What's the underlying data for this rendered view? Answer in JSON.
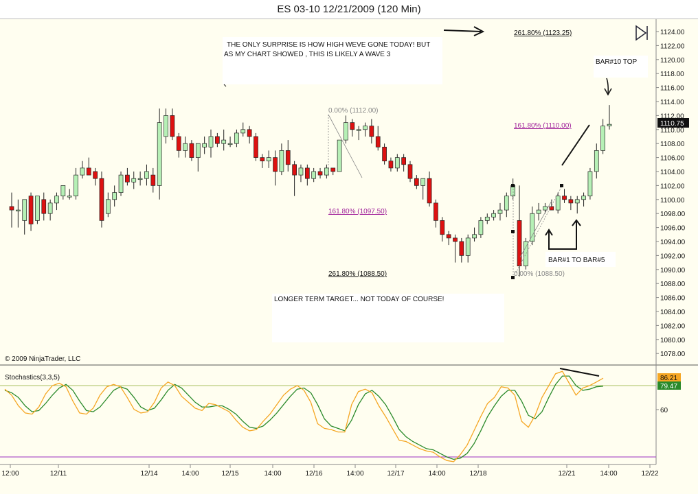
{
  "window": {
    "title": "ES 03-10  12/21/2009 (120 Min)"
  },
  "copyright": "© 2009 NinjaTrader, LLC",
  "price_panel": {
    "last_price": "1110.75",
    "y_ticks": [
      "1124.00",
      "1122.00",
      "1120.00",
      "1118.00",
      "1116.00",
      "1114.00",
      "1112.00",
      "1110.00",
      "1108.00",
      "1106.00",
      "1104.00",
      "1102.00",
      "1100.00",
      "1098.00",
      "1096.00",
      "1094.00",
      "1092.00",
      "1090.00",
      "1088.00",
      "1086.00",
      "1084.00",
      "1082.00",
      "1080.00",
      "1078.00"
    ]
  },
  "annotations": {
    "note1": [
      "THE ONLY SURPRISE IS HOW HIGH WEVE GONE TODAY!  BUT",
      "AS MY CHART SHOWED , THIS IS LIKELY A WAVE 3"
    ],
    "note2": "LONGER TERM TARGET... NOT TODAY OF COURSE!",
    "bar10": "BAR#10 TOP",
    "bar1to5": "BAR#1 TO BAR#5"
  },
  "fib_labels": {
    "f0_top": "0.00% (1112.00)",
    "f1618_left": "161.80% (1097.50)",
    "f2618_left": "261.80% (1088.50)",
    "f0_bottom": "0.00% (1088.50)",
    "f1618_right": "161.80% (1110.00)",
    "f2618_right": "261.80% (1123.25)"
  },
  "indicator": {
    "name": "Stochastics(3,3,5)",
    "k_value": "86.21",
    "d_value": "79.47",
    "y_tick": "60",
    "upper_line": 80,
    "lower_line": 20
  },
  "x_ticks": [
    "12:00",
    "12/11",
    "12/14",
    "14:00",
    "12/15",
    "14:00",
    "12/16",
    "14:00",
    "12/17",
    "14:00",
    "12/18",
    "12/21",
    "14:00",
    "12/22"
  ],
  "colors": {
    "up": "#b6f0b6",
    "down": "#dd1111",
    "k_line": "#f5a623",
    "d_line": "#2a8a2a",
    "upper_line": "#a8c060",
    "lower_line": "#9b30c0",
    "fib": "#a0209a"
  },
  "chart_data": {
    "type": "candlestick",
    "title": "ES 03-10  12/21/2009 (120 Min)",
    "ylim": [
      1077,
      1125
    ],
    "bars": [
      {
        "o": 1099,
        "h": 1101,
        "l": 1096,
        "c": 1098.5
      },
      {
        "o": 1098.5,
        "h": 1100,
        "l": 1096,
        "c": 1098.5
      },
      {
        "o": 1097,
        "h": 1100,
        "l": 1095,
        "c": 1100
      },
      {
        "o": 1100.5,
        "h": 1101,
        "l": 1095.5,
        "c": 1096.5
      },
      {
        "o": 1097,
        "h": 1100.5,
        "l": 1096.5,
        "c": 1100.5
      },
      {
        "o": 1100,
        "h": 1101,
        "l": 1097,
        "c": 1098
      },
      {
        "o": 1098,
        "h": 1100,
        "l": 1097,
        "c": 1099.5
      },
      {
        "o": 1099.5,
        "h": 1101,
        "l": 1098.5,
        "c": 1100.5
      },
      {
        "o": 1100.5,
        "h": 1102,
        "l": 1100,
        "c": 1102
      },
      {
        "o": 1100.5,
        "h": 1101.5,
        "l": 1100,
        "c": 1100.5
      },
      {
        "o": 1100.5,
        "h": 1104.5,
        "l": 1100,
        "c": 1103.5
      },
      {
        "o": 1103.5,
        "h": 1105.5,
        "l": 1103,
        "c": 1104.5
      },
      {
        "o": 1104.5,
        "h": 1106,
        "l": 1103.5,
        "c": 1103.5
      },
      {
        "o": 1104,
        "h": 1104.5,
        "l": 1102,
        "c": 1103
      },
      {
        "o": 1103,
        "h": 1104,
        "l": 1096,
        "c": 1097
      },
      {
        "o": 1098,
        "h": 1101,
        "l": 1097.5,
        "c": 1100
      },
      {
        "o": 1100,
        "h": 1102,
        "l": 1099,
        "c": 1101
      },
      {
        "o": 1101,
        "h": 1104,
        "l": 1100.5,
        "c": 1103.5
      },
      {
        "o": 1103.5,
        "h": 1104.5,
        "l": 1102,
        "c": 1102.5
      },
      {
        "o": 1102.5,
        "h": 1104,
        "l": 1101.5,
        "c": 1103
      },
      {
        "o": 1103,
        "h": 1104,
        "l": 1102,
        "c": 1103
      },
      {
        "o": 1103,
        "h": 1105,
        "l": 1102,
        "c": 1104
      },
      {
        "o": 1103.5,
        "h": 1104.5,
        "l": 1101,
        "c": 1102
      },
      {
        "o": 1102,
        "h": 1113,
        "l": 1100,
        "c": 1111
      },
      {
        "o": 1109,
        "h": 1113,
        "l": 1108,
        "c": 1112
      },
      {
        "o": 1112,
        "h": 1113,
        "l": 1108.5,
        "c": 1109
      },
      {
        "o": 1109,
        "h": 1109.5,
        "l": 1106,
        "c": 1107
      },
      {
        "o": 1107,
        "h": 1109,
        "l": 1106,
        "c": 1108
      },
      {
        "o": 1108,
        "h": 1108.5,
        "l": 1105.5,
        "c": 1106
      },
      {
        "o": 1106,
        "h": 1108,
        "l": 1104,
        "c": 1108
      },
      {
        "o": 1107.5,
        "h": 1109,
        "l": 1106.5,
        "c": 1108
      },
      {
        "o": 1107.5,
        "h": 1110,
        "l": 1106,
        "c": 1109
      },
      {
        "o": 1109,
        "h": 1109.5,
        "l": 1107.5,
        "c": 1108
      },
      {
        "o": 1108,
        "h": 1110,
        "l": 1107,
        "c": 1108.5
      },
      {
        "o": 1108,
        "h": 1109,
        "l": 1107.5,
        "c": 1108
      },
      {
        "o": 1108,
        "h": 1110,
        "l": 1107.5,
        "c": 1109.5
      },
      {
        "o": 1109.5,
        "h": 1111,
        "l": 1109,
        "c": 1110
      },
      {
        "o": 1110,
        "h": 1110.5,
        "l": 1108,
        "c": 1109
      },
      {
        "o": 1109,
        "h": 1109.5,
        "l": 1105.5,
        "c": 1106
      },
      {
        "o": 1106,
        "h": 1106.5,
        "l": 1104.5,
        "c": 1105.5
      },
      {
        "o": 1105.5,
        "h": 1107,
        "l": 1104.5,
        "c": 1106
      },
      {
        "o": 1106,
        "h": 1107,
        "l": 1102,
        "c": 1104
      },
      {
        "o": 1104,
        "h": 1108,
        "l": 1103.5,
        "c": 1107
      },
      {
        "o": 1107,
        "h": 1108.5,
        "l": 1104,
        "c": 1105
      },
      {
        "o": 1105,
        "h": 1105.5,
        "l": 1100.5,
        "c": 1103.5
      },
      {
        "o": 1103.5,
        "h": 1105,
        "l": 1102.5,
        "c": 1104.5
      },
      {
        "o": 1104.5,
        "h": 1105,
        "l": 1102,
        "c": 1103
      },
      {
        "o": 1103,
        "h": 1104.5,
        "l": 1102.5,
        "c": 1104
      },
      {
        "o": 1104,
        "h": 1104.5,
        "l": 1103,
        "c": 1103.5
      },
      {
        "o": 1103.5,
        "h": 1105,
        "l": 1103,
        "c": 1104.5
      },
      {
        "o": 1104.5,
        "h": 1104.5,
        "l": 1103.5,
        "c": 1104
      },
      {
        "o": 1104,
        "h": 1108.5,
        "l": 1104,
        "c": 1108.5
      },
      {
        "o": 1108.5,
        "h": 1112,
        "l": 1108,
        "c": 1111
      },
      {
        "o": 1111,
        "h": 1111.5,
        "l": 1109,
        "c": 1110
      },
      {
        "o": 1110,
        "h": 1110.5,
        "l": 1108.5,
        "c": 1110
      },
      {
        "o": 1110,
        "h": 1111,
        "l": 1109,
        "c": 1110.5
      },
      {
        "o": 1110.5,
        "h": 1111.5,
        "l": 1108,
        "c": 1109
      },
      {
        "o": 1109,
        "h": 1110.5,
        "l": 1107,
        "c": 1107.5
      },
      {
        "o": 1107.5,
        "h": 1108,
        "l": 1105,
        "c": 1105.5
      },
      {
        "o": 1105.5,
        "h": 1106,
        "l": 1104,
        "c": 1104.5
      },
      {
        "o": 1104.5,
        "h": 1106.5,
        "l": 1104,
        "c": 1106
      },
      {
        "o": 1106,
        "h": 1106.5,
        "l": 1104,
        "c": 1105
      },
      {
        "o": 1105,
        "h": 1105.5,
        "l": 1102.5,
        "c": 1103
      },
      {
        "o": 1103,
        "h": 1103.5,
        "l": 1101.5,
        "c": 1102
      },
      {
        "o": 1102,
        "h": 1103,
        "l": 1100,
        "c": 1103
      },
      {
        "o": 1103,
        "h": 1104,
        "l": 1099,
        "c": 1099.5
      },
      {
        "o": 1099.5,
        "h": 1100,
        "l": 1096,
        "c": 1097
      },
      {
        "o": 1097,
        "h": 1097.5,
        "l": 1094,
        "c": 1095
      },
      {
        "o": 1095,
        "h": 1095.5,
        "l": 1093.5,
        "c": 1094.5
      },
      {
        "o": 1094.5,
        "h": 1095,
        "l": 1091,
        "c": 1094
      },
      {
        "o": 1094,
        "h": 1094.5,
        "l": 1091,
        "c": 1092
      },
      {
        "o": 1092,
        "h": 1095,
        "l": 1091,
        "c": 1094.5
      },
      {
        "o": 1094.5,
        "h": 1096,
        "l": 1094,
        "c": 1095
      },
      {
        "o": 1095,
        "h": 1097.5,
        "l": 1094.5,
        "c": 1097
      },
      {
        "o": 1097,
        "h": 1098,
        "l": 1096.5,
        "c": 1097.5
      },
      {
        "o": 1097.5,
        "h": 1098.5,
        "l": 1097,
        "c": 1098
      },
      {
        "o": 1098,
        "h": 1099.5,
        "l": 1097,
        "c": 1098.5
      },
      {
        "o": 1098.5,
        "h": 1101,
        "l": 1097.5,
        "c": 1100.5
      },
      {
        "o": 1100.5,
        "h": 1103,
        "l": 1100,
        "c": 1102
      },
      {
        "o": 1097,
        "h": 1102,
        "l": 1089,
        "c": 1090.5
      },
      {
        "o": 1090.5,
        "h": 1094.5,
        "l": 1090,
        "c": 1094
      },
      {
        "o": 1094,
        "h": 1099,
        "l": 1093.5,
        "c": 1098
      },
      {
        "o": 1098,
        "h": 1099.5,
        "l": 1097,
        "c": 1098.5
      },
      {
        "o": 1098.5,
        "h": 1099.5,
        "l": 1098,
        "c": 1099
      },
      {
        "o": 1099,
        "h": 1100,
        "l": 1098.5,
        "c": 1098.5
      },
      {
        "o": 1098.5,
        "h": 1101,
        "l": 1098,
        "c": 1100.5
      },
      {
        "o": 1100.5,
        "h": 1101.5,
        "l": 1099.5,
        "c": 1100
      },
      {
        "o": 1100,
        "h": 1100.5,
        "l": 1098.5,
        "c": 1099.5
      },
      {
        "o": 1099.5,
        "h": 1100.5,
        "l": 1098,
        "c": 1100
      },
      {
        "o": 1100,
        "h": 1101,
        "l": 1099,
        "c": 1100.5
      },
      {
        "o": 1100.5,
        "h": 1104.5,
        "l": 1100,
        "c": 1104
      },
      {
        "o": 1104,
        "h": 1108,
        "l": 1103,
        "c": 1107
      },
      {
        "o": 1107,
        "h": 1111.5,
        "l": 1106.5,
        "c": 1110.5
      },
      {
        "o": 1110.5,
        "h": 1113.5,
        "l": 1110,
        "c": 1110.75
      }
    ],
    "stochastics": {
      "k": [
        77,
        72,
        63,
        57,
        56,
        62,
        73,
        80,
        82,
        79,
        67,
        57,
        56,
        61,
        72,
        79,
        81,
        79,
        70,
        60,
        57,
        58,
        66,
        78,
        83,
        80,
        71,
        66,
        61,
        59,
        65,
        64,
        61,
        58,
        51,
        45,
        42,
        43,
        50,
        56,
        64,
        72,
        77,
        80,
        76,
        66,
        48,
        44,
        43,
        41,
        41,
        64,
        75,
        77,
        74,
        63,
        54,
        44,
        34,
        33,
        30,
        27,
        25,
        24,
        20,
        17,
        16,
        22,
        30,
        42,
        54,
        65,
        70,
        79,
        78,
        72,
        50,
        45,
        55,
        70,
        80,
        90,
        92,
        82,
        72,
        78,
        80,
        83,
        86.21
      ],
      "d": [
        76,
        74,
        70,
        63,
        58,
        59,
        65,
        72,
        78,
        81,
        76,
        67,
        59,
        58,
        62,
        69,
        76,
        79,
        77,
        70,
        62,
        59,
        61,
        68,
        76,
        81,
        78,
        72,
        66,
        62,
        62,
        63,
        63,
        60,
        56,
        50,
        45,
        44,
        46,
        51,
        57,
        64,
        71,
        77,
        78,
        74,
        64,
        52,
        46,
        44,
        42,
        51,
        64,
        73,
        76,
        71,
        64,
        54,
        43,
        37,
        33,
        30,
        27,
        26,
        23,
        20,
        18,
        19,
        23,
        31,
        42,
        54,
        63,
        71,
        76,
        76,
        67,
        55,
        52,
        58,
        70,
        81,
        88,
        88,
        80,
        76,
        77,
        79,
        79.47
      ]
    }
  }
}
